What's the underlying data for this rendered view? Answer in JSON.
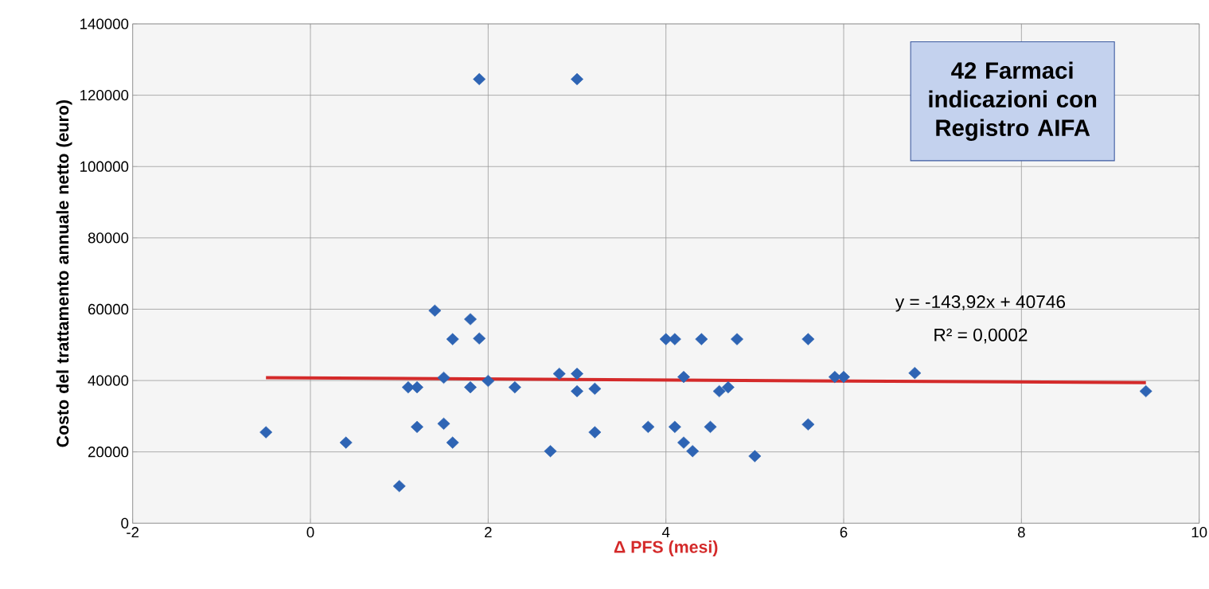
{
  "chart_data": {
    "type": "scatter",
    "xlabel": "Δ PFS (mesi)",
    "ylabel": "Costo del trattamento annuale netto (euro)",
    "annotations": [
      "42 Farmaci indicazioni con Registro AIFA",
      "y = -143,92x + 40746",
      "R² = 0,0002"
    ],
    "xlim": [
      -2,
      10
    ],
    "xticks": [
      -2,
      0,
      2,
      4,
      6,
      8,
      10
    ],
    "ylim": [
      0,
      140000
    ],
    "yticks": [
      0,
      20000,
      40000,
      60000,
      80000,
      100000,
      120000,
      140000
    ],
    "grid": true,
    "marker": "diamond",
    "series": [
      {
        "color": "#2e64b4",
        "x": [
          -0.5,
          0.4,
          1.0,
          1.1,
          1.2,
          1.2,
          1.4,
          1.5,
          1.5,
          1.6,
          1.6,
          1.8,
          1.8,
          1.9,
          1.9,
          2.0,
          2.3,
          2.7,
          2.8,
          3.0,
          3.0,
          3.0,
          3.2,
          3.2,
          3.8,
          4.0,
          4.1,
          4.1,
          4.2,
          4.2,
          4.3,
          4.4,
          4.5,
          4.6,
          4.7,
          4.8,
          5.0,
          5.6,
          5.6,
          5.9,
          6.0,
          6.8,
          9.4
        ],
        "values": [
          25500,
          22600,
          10400,
          38100,
          38100,
          27000,
          59600,
          40800,
          27900,
          51600,
          22600,
          57200,
          38100,
          51800,
          124500,
          39900,
          38100,
          20200,
          41900,
          41900,
          37000,
          124500,
          37700,
          25500,
          27000,
          51600,
          51600,
          27000,
          41000,
          22600,
          20200,
          51600,
          27000,
          37000,
          38100,
          51600,
          18800,
          51600,
          27700,
          41000,
          41000,
          42100,
          37000
        ]
      },
      {
        "type": "line",
        "color": "#d42a2a",
        "marker": "none",
        "x": [
          -0.5,
          9.4
        ],
        "values": [
          40800,
          39400
        ]
      }
    ]
  }
}
